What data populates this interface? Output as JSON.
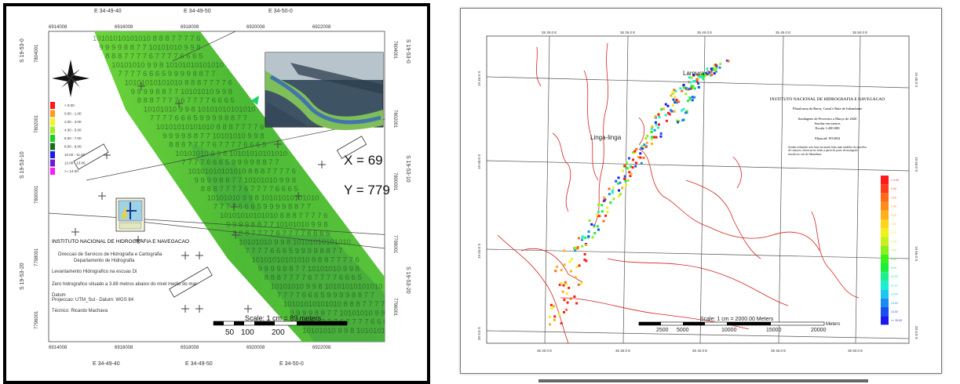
{
  "left_map": {
    "sheet_top": [
      "E 34-49-40",
      "E 34-49-50",
      "E 34-50-0"
    ],
    "sheet_bottom": [
      "E 34-49-40",
      "E 34-49-50",
      "E 34-50-0"
    ],
    "easting_top": [
      "6914008",
      "6916008",
      "6918008",
      "6920008",
      "6922008"
    ],
    "easting_bottom": [
      "6914008",
      "6916008",
      "6918008",
      "6920008",
      "6922008"
    ],
    "sheet_left": [
      "S 19-53-0",
      "S 19-53-10",
      "S 19-53-20"
    ],
    "sheet_right": [
      "S 19-53-0",
      "S 19-53-10",
      "S 19-53-20"
    ],
    "northing_left": [
      "7804001",
      "7802001",
      "7800001",
      "7798001",
      "7796001"
    ],
    "northing_right": [
      "7804001",
      "7802001",
      "7800001",
      "7798001",
      "7796001"
    ],
    "legend": [
      {
        "label": "< 0.00",
        "color": "#ff1a1a"
      },
      {
        "label": "0.00 - 1.00",
        "color": "#ff9a1a"
      },
      {
        "label": "2.00 - 3.00",
        "color": "#f5f51a"
      },
      {
        "label": "4.00 - 5.00",
        "color": "#9ef01a"
      },
      {
        "label": "6.00 - 7.00",
        "color": "#1ad21a"
      },
      {
        "label": "8.00 - 9.00",
        "color": "#1a6e1a"
      },
      {
        "label": "10.00 - 11.00",
        "color": "#1a1ae6"
      },
      {
        "label": "12.00 - 13.00",
        "color": "#6e1ad2"
      },
      {
        "label": ">= 14.00",
        "color": "#ff1aff"
      }
    ],
    "coord_x": "X =  69",
    "coord_y": "Y = 779",
    "institution": "INSTITUTO NACIONAL DE HIDROGRAFIA E NAVEGACAO",
    "direction": "Direccao de Servicos de Hidrografia e Cartografia",
    "department": "Departamento de Hidrografia",
    "survey": "Levantamento Hidrografico na escuas Di",
    "zero": "Zero hidrografico situado a 3.88 metros abaixo do nivel medio do mar",
    "datum_label": "Datum",
    "projection": "Projeccao: UTM_Sul - Datum: WGS 84",
    "technician": "Técnico: Ricardo Machava",
    "scale_text": "Scale: 1 cm = 89 meters",
    "scale_ticks": [
      "50",
      "100",
      "200"
    ],
    "depth_digits": [
      "10101010101010",
      "9 9 9 9 8 8 7 7",
      "8 8 8 7 7 7 7 6",
      "10101010 9 9 8",
      "7 7 7 7 6 6 6 5"
    ],
    "colors": {
      "frame": "#000000",
      "channel": "#55c43a",
      "channel_dark": "#2e8a3a",
      "marker": "#1fd06a"
    }
  },
  "right_map": {
    "top_ticks": [
      "35 30.0 E",
      "35 35.0 E",
      "35 40.0 E",
      "35 45.0 E",
      "35 50.0 E",
      "35 55.0 E"
    ],
    "bottom_ticks": [
      "35 30.0 E",
      "35 35.0 E",
      "35 40.0 E",
      "35 45.0 E",
      "35 50.0 E",
      "35 55.0 E"
    ],
    "left_ticks": [
      "19 45.0 S",
      "19 50.0 S",
      "19 55.0 S",
      "20 0.0 S"
    ],
    "right_ticks": [
      "19 45.0 S",
      "19 50.0 S",
      "19 55.0 S",
      "20 0.0 S"
    ],
    "place_largura": "Largura 2",
    "place_linga": "Linga-linga",
    "title_lines": [
      "INSTITUTO NACIONAL DE HIDROGRAFIA E NAVEGACAO",
      "Plataforma da Barra, Canal e Baía de Inhambane",
      "Sondagens de Fevereiro a Março de 2020",
      "Sondas em metros",
      "Escala 1:200 000",
      "Elipsoid: WGS84"
    ],
    "note": "Sondas reduzidas com base em marés lidas num medidor de uma ilha de contacto; observacoes feitas a partir do posto do maregrafo situado no cais de Inhambane",
    "legend_values": [
      "< 0.00",
      "0.00",
      "1.00",
      "2.00",
      "3.00",
      "4.00",
      "5.00",
      "6.00",
      "7.00",
      "8.00",
      "9.00",
      "10.00",
      "11.00",
      "12.00",
      "13.00",
      "14.00",
      ">= 15.00"
    ],
    "legend_colors": [
      "#ff1a1a",
      "#ff3c1a",
      "#ff6a1a",
      "#ff8c1a",
      "#ffb01a",
      "#ffd41a",
      "#f0f01a",
      "#c8f01a",
      "#8cf01a",
      "#3cf01a",
      "#1af03c",
      "#1af08c",
      "#1af0d2",
      "#1ac8f0",
      "#1a8cf0",
      "#1a50f0",
      "#1a1af0"
    ],
    "scale_text": "Scale: 1 cm = 2000.00 Meters",
    "scale_ticks": [
      "2500",
      "5000",
      "10000",
      "15000",
      "20000"
    ],
    "scale_unit": "Meters"
  }
}
